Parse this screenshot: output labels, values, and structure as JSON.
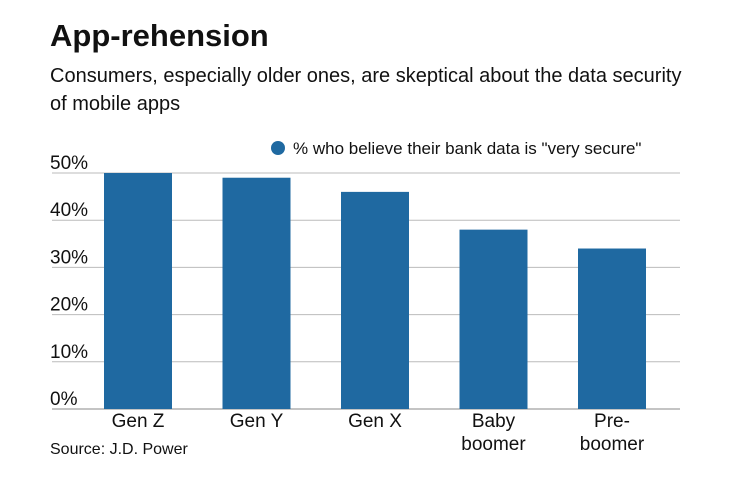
{
  "chart_data": {
    "type": "bar",
    "title": "App-rehension",
    "subtitle": "Consumers, especially older ones, are skeptical about the data security of mobile apps",
    "source": "Source: J.D. Power",
    "categories": [
      "Gen Z",
      "Gen Y",
      "Gen X",
      "Baby boomer",
      "Pre-boomer"
    ],
    "series": [
      {
        "name": "% who believe their bank data is \"very secure\"",
        "color": "#1f69a1",
        "values": [
          50,
          49,
          46,
          38,
          34
        ]
      }
    ],
    "ylim": [
      0,
      50
    ],
    "yticks": [
      {
        "value": 0,
        "label": "0%"
      },
      {
        "value": 10,
        "label": "10%"
      },
      {
        "value": 20,
        "label": "20%"
      },
      {
        "value": 30,
        "label": "30%"
      },
      {
        "value": 40,
        "label": "40%"
      },
      {
        "value": 50,
        "label": "50%"
      }
    ],
    "grid": true,
    "legend": "top-right"
  }
}
